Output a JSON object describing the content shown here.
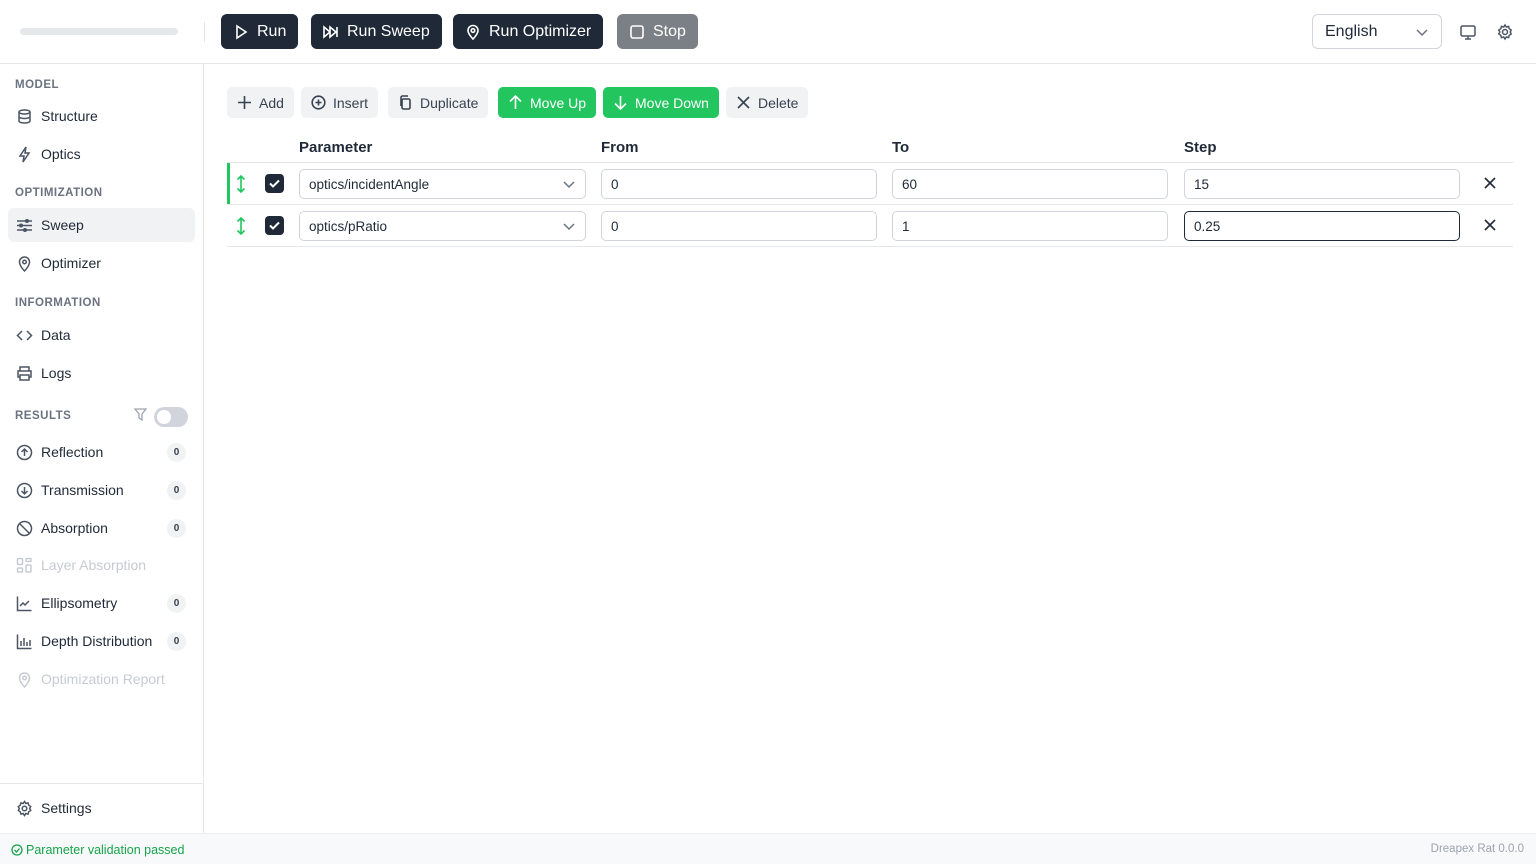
{
  "toolbar": {
    "run": "Run",
    "run_sweep": "Run Sweep",
    "run_optimizer": "Run Optimizer",
    "stop": "Stop",
    "language": "English"
  },
  "sidebar": {
    "sections": {
      "model": "MODEL",
      "optimization": "OPTIMIZATION",
      "information": "INFORMATION",
      "results": "RESULTS"
    },
    "model": [
      {
        "label": "Structure",
        "icon": "database-icon"
      },
      {
        "label": "Optics",
        "icon": "lightning-icon"
      }
    ],
    "optimization": [
      {
        "label": "Sweep",
        "icon": "sliders-icon",
        "active": true
      },
      {
        "label": "Optimizer",
        "icon": "map-pin-icon"
      }
    ],
    "information": [
      {
        "label": "Data",
        "icon": "code-icon"
      },
      {
        "label": "Logs",
        "icon": "printer-icon"
      }
    ],
    "results": [
      {
        "label": "Reflection",
        "count": "0"
      },
      {
        "label": "Transmission",
        "count": "0"
      },
      {
        "label": "Absorption",
        "count": "0"
      },
      {
        "label": "Layer Absorption",
        "disabled": true
      },
      {
        "label": "Ellipsometry",
        "count": "0"
      },
      {
        "label": "Depth Distribution",
        "count": "0"
      },
      {
        "label": "Optimization Report",
        "disabled": true
      }
    ],
    "results_filter_enabled": false,
    "settings": "Settings"
  },
  "actions": {
    "add": "Add",
    "insert": "Insert",
    "duplicate": "Duplicate",
    "move_up": "Move Up",
    "move_down": "Move Down",
    "delete": "Delete"
  },
  "table": {
    "headers": [
      "Parameter",
      "From",
      "To",
      "Step"
    ],
    "rows": [
      {
        "enabled": true,
        "parameter": "optics/incidentAngle",
        "from": "0",
        "to": "60",
        "step": "15",
        "selected": true
      },
      {
        "enabled": true,
        "parameter": "optics/pRatio",
        "from": "0",
        "to": "1",
        "step": "0.25"
      }
    ]
  },
  "status": {
    "message": "Parameter validation passed",
    "version": "Dreapex Rat 0.0.0"
  },
  "colors": {
    "accent": "#22c55e",
    "primary": "#1f2937"
  }
}
